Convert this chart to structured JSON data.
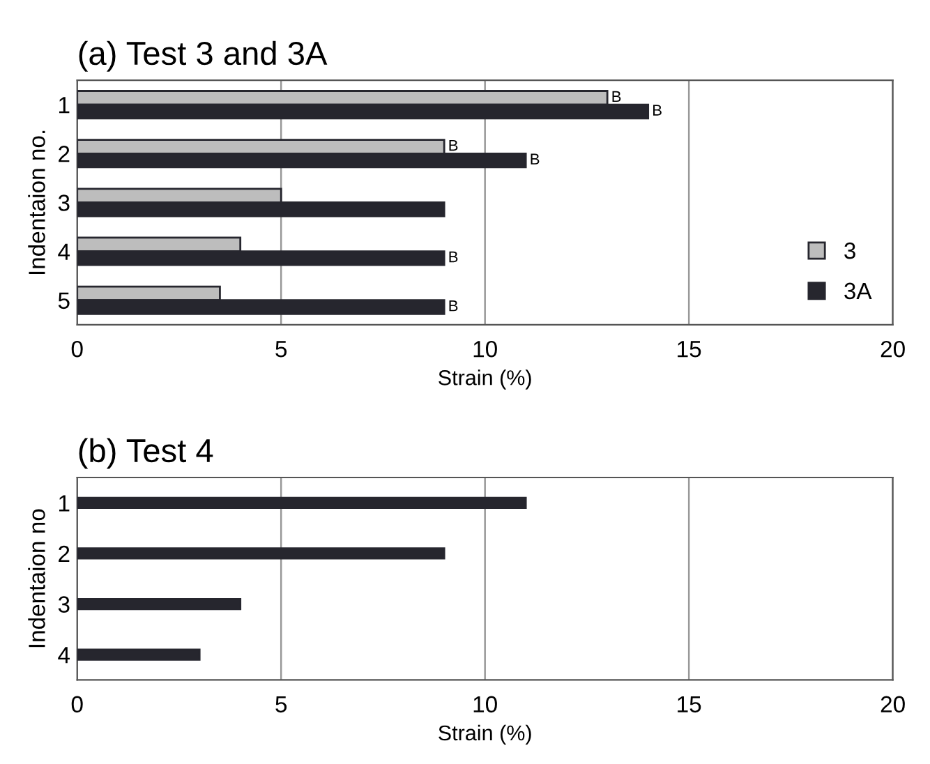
{
  "chart_data": [
    {
      "type": "bar",
      "orientation": "horizontal",
      "title": "(a) Test 3 and 3A",
      "xlabel": "Strain (%)",
      "ylabel": "Indentaion no.",
      "categories": [
        "1",
        "2",
        "3",
        "4",
        "5"
      ],
      "series": [
        {
          "name": "3",
          "color": "#bdbdbd",
          "values": [
            13,
            9,
            5,
            4,
            3.5
          ],
          "value_labels": [
            "B",
            "B",
            null,
            null,
            null
          ]
        },
        {
          "name": "3A",
          "color": "#26262e",
          "values": [
            14,
            11,
            9,
            9,
            9
          ],
          "value_labels": [
            "B",
            "B",
            null,
            "B",
            "B"
          ]
        }
      ],
      "xlim": [
        0,
        20
      ],
      "xticks": [
        0,
        5,
        10,
        15,
        20
      ],
      "grid": "x",
      "legend": "bottom right"
    },
    {
      "type": "bar",
      "orientation": "horizontal",
      "title": "(b) Test 4",
      "xlabel": "Strain (%)",
      "ylabel": "Indentaion no",
      "categories": [
        "1",
        "2",
        "3",
        "4"
      ],
      "series": [
        {
          "color": "#26262e",
          "values": [
            11,
            9,
            4,
            3
          ]
        }
      ],
      "xlim": [
        0,
        20
      ],
      "xticks": [
        0,
        5,
        10,
        15,
        20
      ],
      "grid": "x"
    }
  ]
}
